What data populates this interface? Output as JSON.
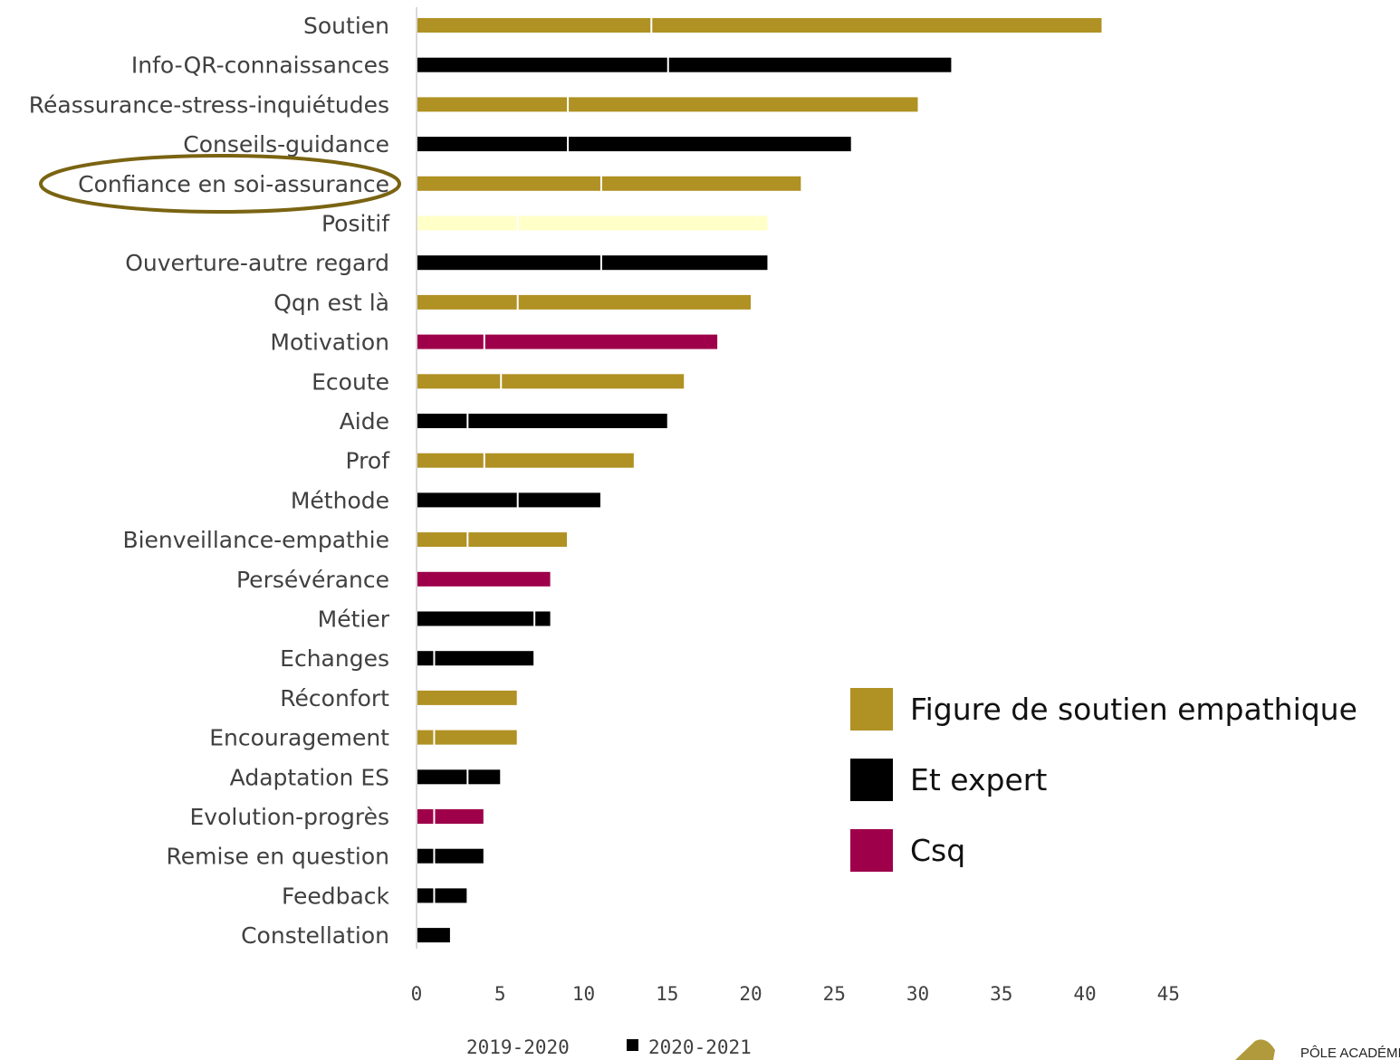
{
  "colors": {
    "figure": "#b09123",
    "expert": "#000000",
    "csq": "#9e0049",
    "positif": "#ffffc8",
    "axis": "#d9d9d9",
    "highlight_ellipse": "#7a6412",
    "logo": "#b09a3c"
  },
  "chart_data": {
    "type": "bar",
    "orientation": "horizontal",
    "stacked": true,
    "xlim": [
      0,
      45
    ],
    "x_ticks": [
      "0",
      "5",
      "10",
      "15",
      "20",
      "25",
      "30",
      "35",
      "40",
      "45"
    ],
    "series": [
      {
        "name": "2019-2020"
      },
      {
        "name": "2020-2021"
      }
    ],
    "categories": [
      {
        "label": "Soutien",
        "v2019": 14,
        "v2020": 27,
        "group": "figure"
      },
      {
        "label": "Info-QR-connaissances",
        "v2019": 15,
        "v2020": 17,
        "group": "expert"
      },
      {
        "label": "Réassurance-stress-inquiétudes",
        "v2019": 9,
        "v2020": 21,
        "group": "figure"
      },
      {
        "label": "Conseils-guidance",
        "v2019": 9,
        "v2020": 17,
        "group": "expert"
      },
      {
        "label": "Confiance en soi-assurance",
        "v2019": 11,
        "v2020": 12,
        "group": "figure",
        "highlighted": true
      },
      {
        "label": "Positif",
        "v2019": 6,
        "v2020": 15,
        "group": "positif"
      },
      {
        "label": "Ouverture-autre regard",
        "v2019": 11,
        "v2020": 10,
        "group": "expert"
      },
      {
        "label": "Qqn est là",
        "v2019": 6,
        "v2020": 14,
        "group": "figure"
      },
      {
        "label": "Motivation",
        "v2019": 4,
        "v2020": 14,
        "group": "csq"
      },
      {
        "label": "Ecoute",
        "v2019": 5,
        "v2020": 11,
        "group": "figure"
      },
      {
        "label": "Aide",
        "v2019": 3,
        "v2020": 12,
        "group": "expert"
      },
      {
        "label": "Prof",
        "v2019": 4,
        "v2020": 9,
        "group": "figure"
      },
      {
        "label": "Méthode",
        "v2019": 6,
        "v2020": 5,
        "group": "expert"
      },
      {
        "label": "Bienveillance-empathie",
        "v2019": 3,
        "v2020": 6,
        "group": "figure"
      },
      {
        "label": "Persévérance",
        "v2019": 0,
        "v2020": 8,
        "group": "csq"
      },
      {
        "label": "Métier",
        "v2019": 7,
        "v2020": 1,
        "group": "expert"
      },
      {
        "label": "Echanges",
        "v2019": 1,
        "v2020": 6,
        "group": "expert"
      },
      {
        "label": "Réconfort",
        "v2019": 0,
        "v2020": 6,
        "group": "figure"
      },
      {
        "label": "Encouragement",
        "v2019": 1,
        "v2020": 5,
        "group": "figure"
      },
      {
        "label": "Adaptation ES",
        "v2019": 3,
        "v2020": 2,
        "group": "expert"
      },
      {
        "label": "Evolution-progrès",
        "v2019": 1,
        "v2020": 3,
        "group": "csq"
      },
      {
        "label": "Remise en question",
        "v2019": 1,
        "v2020": 3,
        "group": "expert"
      },
      {
        "label": "Feedback",
        "v2019": 1,
        "v2020": 2,
        "group": "expert"
      },
      {
        "label": "Constellation",
        "v2019": 0,
        "v2020": 2,
        "group": "expert"
      }
    ],
    "group_legend": [
      {
        "key": "figure",
        "label": "Figure de soutien empathique"
      },
      {
        "key": "expert",
        "label": "Et expert"
      },
      {
        "key": "csq",
        "label": "Csq"
      }
    ],
    "bottom_legend": [
      {
        "label": "2019-2020",
        "marker": false
      },
      {
        "label": "2020-2021",
        "marker": true
      }
    ]
  },
  "corner_logo_text": "PÔLE ACADÉMIC"
}
